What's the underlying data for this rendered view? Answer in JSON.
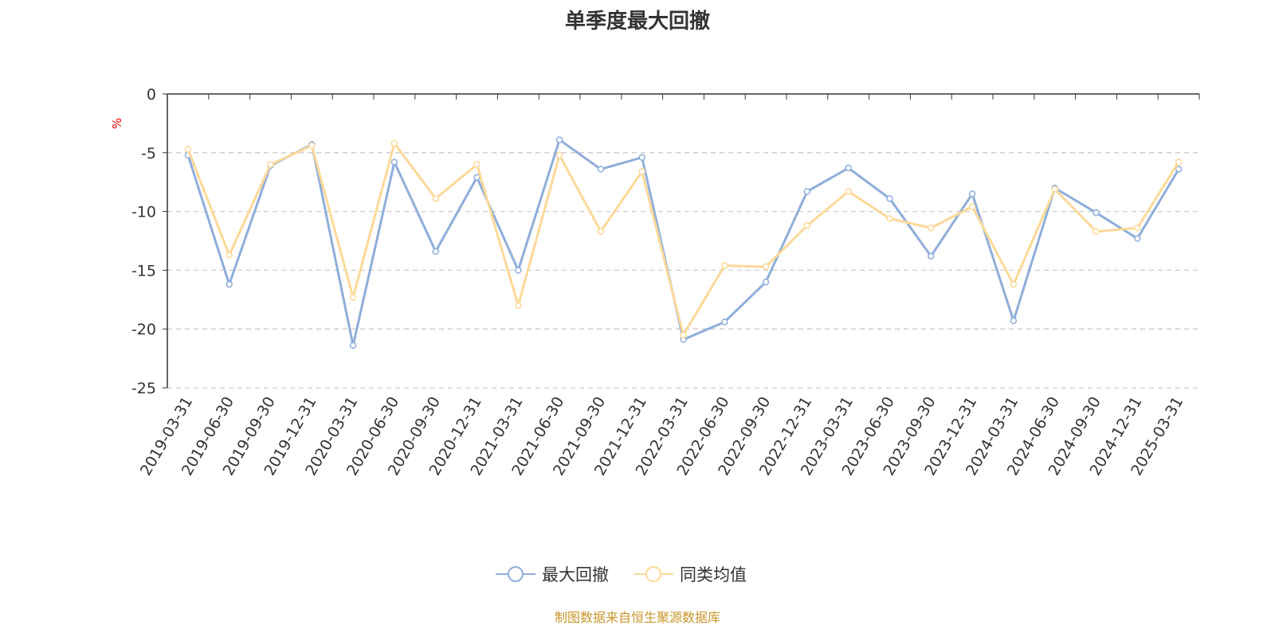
{
  "chart_data": {
    "type": "line",
    "title": "单季度最大回撤",
    "ylabel": "%",
    "xlabel": "",
    "ylim": [
      -25,
      0
    ],
    "yticks": [
      0,
      -5,
      -10,
      -15,
      -20,
      -25
    ],
    "grid": true,
    "legend_position": "bottom",
    "categories": [
      "2019-03-31",
      "2019-06-30",
      "2019-09-30",
      "2019-12-31",
      "2020-03-31",
      "2020-06-30",
      "2020-09-30",
      "2020-12-31",
      "2021-03-31",
      "2021-06-30",
      "2021-09-30",
      "2021-12-31",
      "2022-03-31",
      "2022-06-30",
      "2022-09-30",
      "2022-12-31",
      "2023-03-31",
      "2023-06-30",
      "2023-09-30",
      "2023-12-31",
      "2024-03-31",
      "2024-06-30",
      "2024-09-30",
      "2024-12-31",
      "2025-03-31"
    ],
    "series": [
      {
        "name": "最大回撤",
        "color": "#8eaedb",
        "values": [
          -5.2,
          -16.2,
          -6.1,
          -4.3,
          -21.4,
          -5.8,
          -13.4,
          -7.1,
          -15.0,
          -3.9,
          -6.4,
          -5.4,
          -20.9,
          -19.4,
          -16.0,
          -8.3,
          -6.3,
          -8.9,
          -13.8,
          -8.5,
          -19.3,
          -8.0,
          -10.1,
          -12.3,
          -6.4
        ]
      },
      {
        "name": "同类均值",
        "color": "#fcd998",
        "values": [
          -4.7,
          -13.7,
          -6.0,
          -4.4,
          -17.3,
          -4.2,
          -8.9,
          -6.0,
          -18.0,
          -5.2,
          -11.7,
          -6.6,
          -20.5,
          -14.6,
          -14.7,
          -11.2,
          -8.3,
          -10.6,
          -11.4,
          -9.6,
          -16.2,
          -8.1,
          -11.7,
          -11.4,
          -5.8
        ]
      }
    ]
  },
  "source": "制图数据来自恒生聚源数据库"
}
